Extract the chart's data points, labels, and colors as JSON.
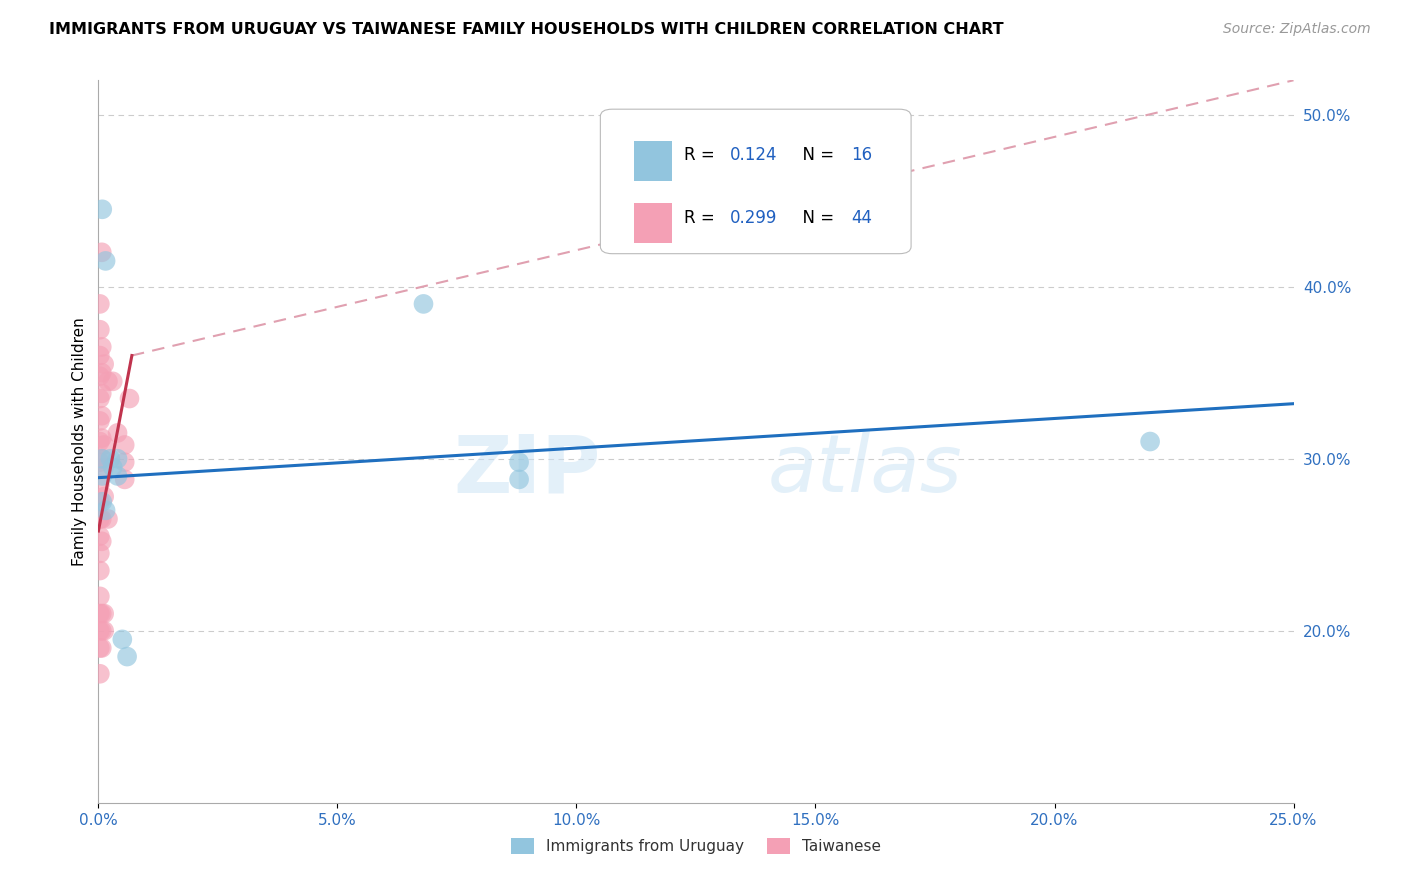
{
  "title": "IMMIGRANTS FROM URUGUAY VS TAIWANESE FAMILY HOUSEHOLDS WITH CHILDREN CORRELATION CHART",
  "source": "Source: ZipAtlas.com",
  "ylabel": "Family Households with Children",
  "xlim": [
    0.0,
    0.25
  ],
  "ylim": [
    0.1,
    0.52
  ],
  "xticks": [
    0.0,
    0.05,
    0.1,
    0.15,
    0.2,
    0.25
  ],
  "xtick_labels": [
    "0.0%",
    "5.0%",
    "10.0%",
    "15.0%",
    "20.0%",
    "25.0%"
  ],
  "yticks_right": [
    0.2,
    0.3,
    0.4,
    0.5
  ],
  "ytick_labels_right": [
    "20.0%",
    "30.0%",
    "40.0%",
    "50.0%"
  ],
  "color_blue": "#92c5de",
  "color_pink": "#f4a0b5",
  "color_line_blue": "#1f6fbf",
  "color_line_pink": "#c0334d",
  "color_line_dashed": "#e0a0b0",
  "blue_points": [
    [
      0.0008,
      0.445
    ],
    [
      0.0015,
      0.415
    ],
    [
      0.0008,
      0.3
    ],
    [
      0.0008,
      0.29
    ],
    [
      0.0008,
      0.275
    ],
    [
      0.0015,
      0.27
    ],
    [
      0.0025,
      0.3
    ],
    [
      0.003,
      0.295
    ],
    [
      0.004,
      0.29
    ],
    [
      0.004,
      0.3
    ],
    [
      0.005,
      0.195
    ],
    [
      0.006,
      0.185
    ],
    [
      0.068,
      0.39
    ],
    [
      0.088,
      0.298
    ],
    [
      0.088,
      0.288
    ],
    [
      0.22,
      0.31
    ]
  ],
  "pink_points": [
    [
      0.0003,
      0.39
    ],
    [
      0.0003,
      0.375
    ],
    [
      0.0003,
      0.36
    ],
    [
      0.0003,
      0.348
    ],
    [
      0.0003,
      0.335
    ],
    [
      0.0003,
      0.322
    ],
    [
      0.0003,
      0.31
    ],
    [
      0.0003,
      0.298
    ],
    [
      0.0003,
      0.285
    ],
    [
      0.0003,
      0.275
    ],
    [
      0.0003,
      0.265
    ],
    [
      0.0003,
      0.255
    ],
    [
      0.0003,
      0.245
    ],
    [
      0.0003,
      0.235
    ],
    [
      0.0003,
      0.22
    ],
    [
      0.0003,
      0.21
    ],
    [
      0.0003,
      0.2
    ],
    [
      0.0003,
      0.19
    ],
    [
      0.0003,
      0.175
    ],
    [
      0.0007,
      0.42
    ],
    [
      0.0007,
      0.365
    ],
    [
      0.0007,
      0.35
    ],
    [
      0.0007,
      0.338
    ],
    [
      0.0007,
      0.325
    ],
    [
      0.0007,
      0.312
    ],
    [
      0.0007,
      0.3
    ],
    [
      0.0007,
      0.265
    ],
    [
      0.0007,
      0.252
    ],
    [
      0.0007,
      0.21
    ],
    [
      0.0007,
      0.2
    ],
    [
      0.0007,
      0.19
    ],
    [
      0.0012,
      0.355
    ],
    [
      0.0012,
      0.308
    ],
    [
      0.0012,
      0.295
    ],
    [
      0.0012,
      0.278
    ],
    [
      0.0012,
      0.21
    ],
    [
      0.0012,
      0.2
    ],
    [
      0.002,
      0.345
    ],
    [
      0.002,
      0.265
    ],
    [
      0.003,
      0.345
    ],
    [
      0.004,
      0.315
    ],
    [
      0.0055,
      0.308
    ],
    [
      0.0055,
      0.298
    ],
    [
      0.0055,
      0.288
    ],
    [
      0.0065,
      0.335
    ]
  ],
  "blue_trendline": [
    [
      0.0,
      0.289
    ],
    [
      0.25,
      0.332
    ]
  ],
  "pink_trendline_solid": [
    [
      0.0,
      0.258
    ],
    [
      0.007,
      0.36
    ]
  ],
  "pink_trendline_dashed": [
    [
      0.007,
      0.36
    ],
    [
      0.25,
      0.52
    ]
  ]
}
